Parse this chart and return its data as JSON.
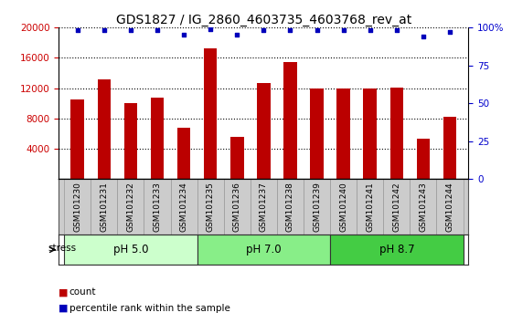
{
  "title": "GDS1827 / IG_2860_4603735_4603768_rev_at",
  "samples": [
    "GSM101230",
    "GSM101231",
    "GSM101232",
    "GSM101233",
    "GSM101234",
    "GSM101235",
    "GSM101236",
    "GSM101237",
    "GSM101238",
    "GSM101239",
    "GSM101240",
    "GSM101241",
    "GSM101242",
    "GSM101243",
    "GSM101244"
  ],
  "counts": [
    10500,
    13200,
    10000,
    10700,
    6800,
    17200,
    5600,
    12700,
    15500,
    12000,
    12000,
    12000,
    12100,
    5400,
    8200
  ],
  "percentile_ranks": [
    98,
    98,
    98,
    98,
    95,
    99,
    95,
    98,
    98,
    98,
    98,
    98,
    98,
    94,
    97
  ],
  "ylim_left": [
    0,
    20000
  ],
  "ylim_right": [
    0,
    100
  ],
  "yticks_left": [
    4000,
    8000,
    12000,
    16000,
    20000
  ],
  "yticks_right": [
    0,
    25,
    50,
    75,
    100
  ],
  "bar_color": "#bb0000",
  "dot_color": "#0000bb",
  "groups": [
    {
      "label": "pH 5.0",
      "start": 0,
      "end": 4,
      "color": "#ccffcc"
    },
    {
      "label": "pH 7.0",
      "start": 5,
      "end": 9,
      "color": "#88ee88"
    },
    {
      "label": "pH 8.7",
      "start": 10,
      "end": 14,
      "color": "#44cc44"
    }
  ],
  "stress_label": "stress",
  "legend_count_label": "count",
  "legend_pct_label": "percentile rank within the sample",
  "title_fontsize": 10,
  "axis_color_left": "#cc0000",
  "axis_color_right": "#0000cc",
  "tick_label_fontsize": 7.5,
  "sample_label_fontsize": 6.5,
  "bar_width": 0.5,
  "dot_marker": "s",
  "dot_size": 12,
  "gridline_style": "dotted",
  "gridline_color": "#000000",
  "plot_bg": "#ffffff",
  "sample_box_bg": "#cccccc"
}
